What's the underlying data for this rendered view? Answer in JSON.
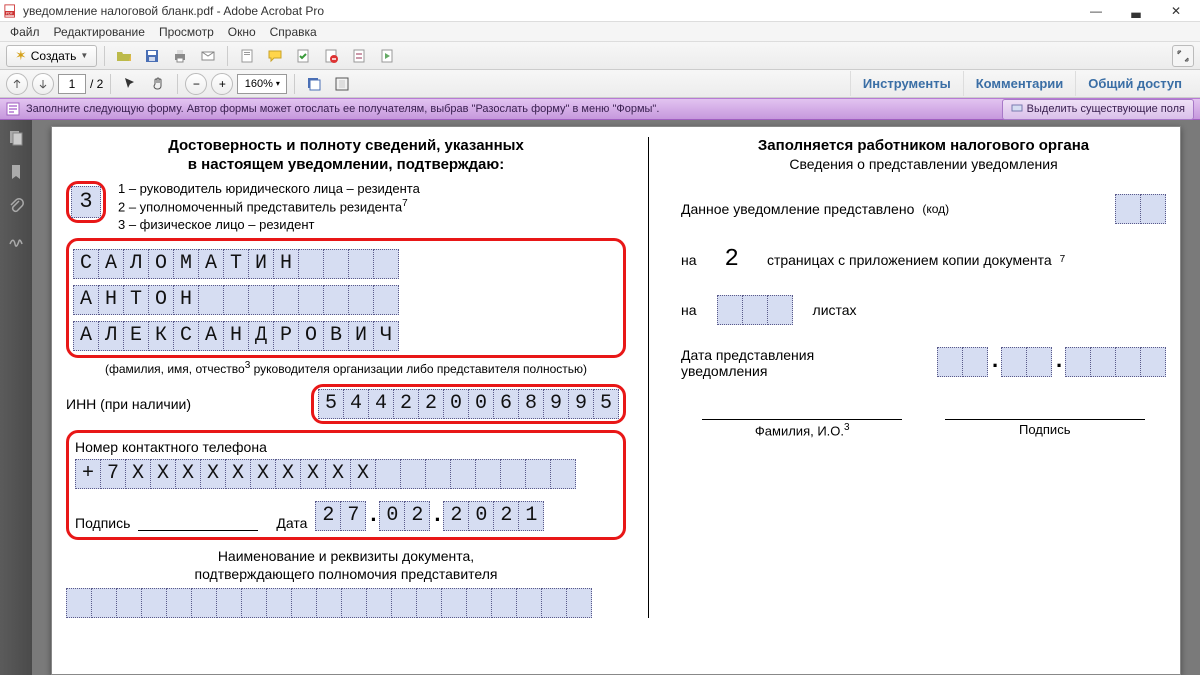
{
  "window": {
    "title": "уведомление налоговой бланк.pdf - Adobe Acrobat Pro"
  },
  "menu": {
    "file": "Файл",
    "edit": "Редактирование",
    "view": "Просмотр",
    "window": "Окно",
    "help": "Справка"
  },
  "toolbar1": {
    "create": "Создать"
  },
  "toolbar2": {
    "page_current": "1",
    "page_total": "/ 2",
    "zoom": "160%",
    "tab_tools": "Инструменты",
    "tab_comments": "Комментарии",
    "tab_share": "Общий доступ"
  },
  "formbar": {
    "message": "Заполните следующую форму. Автор формы может отослать ее получателям, выбрав \"Разослать форму\" в меню \"Формы\".",
    "highlight": "Выделить существующие поля"
  },
  "doc": {
    "left": {
      "title1": "Достоверность и полноту сведений, указанных",
      "title2": "в настоящем уведомлении, подтверждаю:",
      "code_box": "3",
      "type1": "1 – руководитель юридического лица – резидента",
      "type2": "2 – уполномоченный представитель резидента",
      "type2_sup": "7",
      "type3": "3 – физическое лицо – резидент",
      "surname": "САЛОМАТИН",
      "name": "АНТОН",
      "patronymic": "АЛЕКСАНДРОВИЧ",
      "fio_note": "(фамилия, имя, отчество   руководителя организации либо представителя полностью)",
      "fio_sup": "3",
      "inn_label": "ИНН (при наличии)",
      "inn": "544220068995",
      "phone_label": "Номер контактного телефона",
      "phone": "+7XXXXXXXXXX",
      "sign_label": "Подпись",
      "date_label": "Дата",
      "date_d": "27",
      "date_m": "02",
      "date_y": "2021",
      "auth_doc1": "Наименование и реквизиты документа,",
      "auth_doc2": "подтверждающего полномочия представителя"
    },
    "right": {
      "title": "Заполняется работником налогового органа",
      "subtitle": "Сведения о представлении уведомления",
      "presented_label": "Данное уведомление представлено",
      "code_label": "(код)",
      "on": "на",
      "on_pages_value": "2",
      "on_pages_text": "страницах с приложением копии документа",
      "on_pages_sup": "7",
      "sheets_text": "листах",
      "date_label1": "Дата представления",
      "date_label2": "уведомления",
      "foot_fio": "Фамилия, И.О.",
      "foot_fio_sup": "3",
      "foot_sign": "Подпись"
    }
  },
  "colors": {
    "form_field_bg": "#d6ddf2",
    "highlight_border": "#e81717",
    "purple_bar_top": "#e2c3f0",
    "purple_bar_bottom": "#c698dd"
  }
}
